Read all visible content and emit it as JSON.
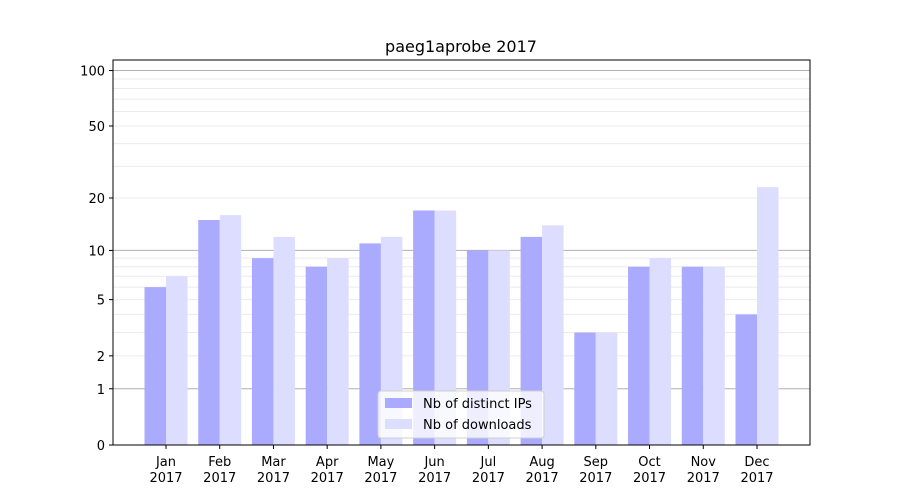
{
  "chart_data": {
    "type": "bar",
    "title": "paeg1aprobe 2017",
    "xlabel": "",
    "ylabel": "",
    "yscale": "symlog",
    "ylim": [
      0,
      114
    ],
    "yticks": [
      0,
      1,
      2,
      5,
      10,
      20,
      50,
      100
    ],
    "grid": true,
    "legend_position": "bottom-center",
    "categories": [
      "Jan\n2017",
      "Feb\n2017",
      "Mar\n2017",
      "Apr\n2017",
      "May\n2017",
      "Jun\n2017",
      "Jul\n2017",
      "Aug\n2017",
      "Sep\n2017",
      "Oct\n2017",
      "Nov\n2017",
      "Dec\n2017"
    ],
    "series": [
      {
        "name": "Nb of distinct IPs",
        "color": "#aaaaff",
        "values": [
          6,
          15,
          9,
          8,
          11,
          17,
          10,
          12,
          3,
          8,
          8,
          4
        ]
      },
      {
        "name": "Nb of downloads",
        "color": "#ddddff",
        "values": [
          7,
          16,
          12,
          9,
          12,
          17,
          10,
          14,
          3,
          9,
          8,
          23
        ]
      }
    ]
  }
}
